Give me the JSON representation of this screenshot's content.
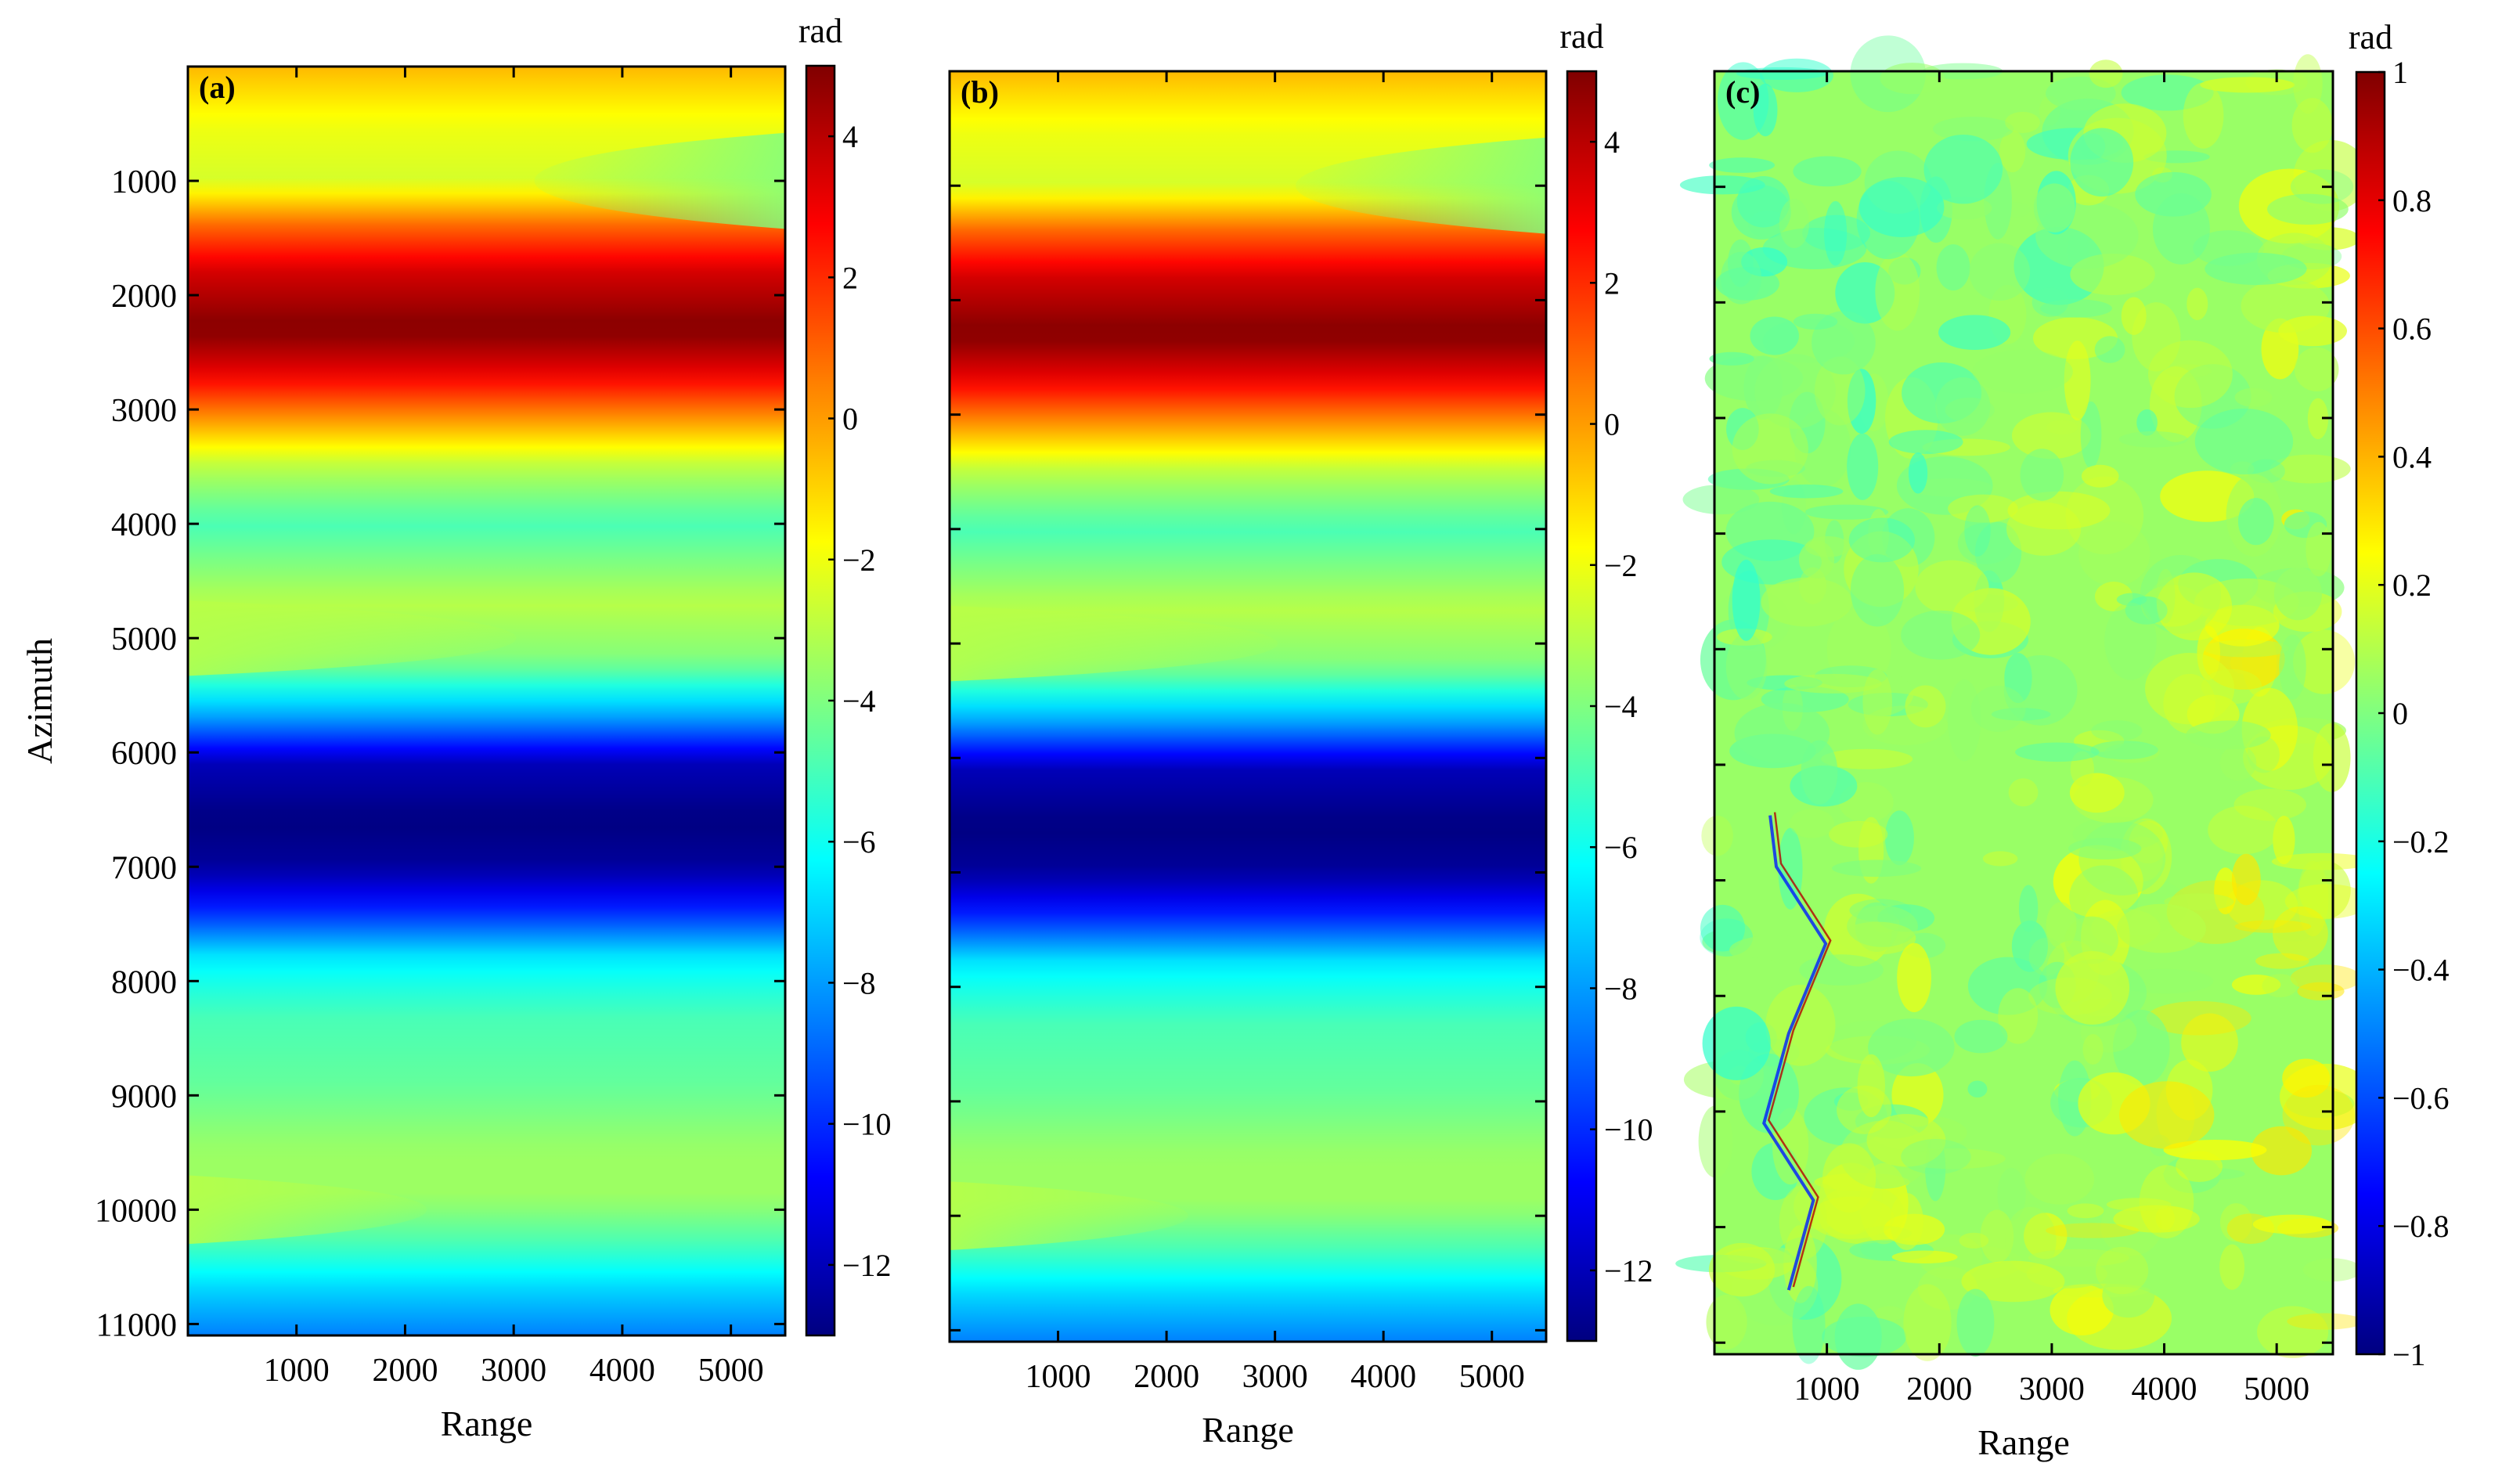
{
  "chart_data": [
    {
      "panel_label": "(a)",
      "type": "heatmap",
      "title": "",
      "xlabel": "Range",
      "ylabel": "Azimuth",
      "x_ticks": [
        1000,
        2000,
        3000,
        4000,
        5000
      ],
      "x_tick_labels": [
        "1000",
        "2000",
        "3000",
        "4000",
        "5000"
      ],
      "y_ticks": [
        1000,
        2000,
        3000,
        4000,
        5000,
        6000,
        7000,
        8000,
        9000,
        10000,
        11000
      ],
      "y_tick_labels": [
        "1000",
        "2000",
        "3000",
        "4000",
        "5000",
        "6000",
        "7000",
        "8000",
        "9000",
        "10000",
        "11000"
      ],
      "xlim": [
        0,
        5500
      ],
      "ylim": [
        0,
        11100
      ],
      "colorbar": {
        "label": "rad",
        "range": [
          -13,
          5
        ],
        "ticks": [
          4,
          2,
          0,
          -2,
          -4,
          -6,
          -8,
          -10,
          -12
        ],
        "tick_labels": [
          "4",
          "2",
          "0",
          "−2",
          "−4",
          "−6",
          "−8",
          "−10",
          "−12"
        ],
        "colormap": "jet"
      },
      "profile_azimuth": [
        0,
        500,
        1000,
        1400,
        1800,
        2300,
        2700,
        3100,
        3500,
        4000,
        4700,
        5200,
        5700,
        6100,
        6600,
        7000,
        7400,
        7800,
        8300,
        8900,
        9500,
        9900,
        10300,
        10700,
        11100
      ],
      "profile_values": [
        -0.5,
        -2,
        -2.5,
        1,
        3.5,
        5,
        3,
        0,
        -3,
        -5,
        -3,
        -4,
        -8,
        -12,
        -13,
        -12.5,
        -10,
        -6.5,
        -5,
        -4.5,
        -3.5,
        -3.5,
        -5,
        -7,
        -8.5
      ],
      "range_feature": "green lobes taper toward larger Range at Azimuth 1000, 5000, 10000"
    },
    {
      "panel_label": "(b)",
      "type": "heatmap",
      "title": "",
      "xlabel": "Range",
      "ylabel": "",
      "x_ticks": [
        1000,
        2000,
        3000,
        4000,
        5000
      ],
      "x_tick_labels": [
        "1000",
        "2000",
        "3000",
        "4000",
        "5000"
      ],
      "y_ticks": [
        1000,
        2000,
        3000,
        4000,
        5000,
        6000,
        7000,
        8000,
        9000,
        10000,
        11000
      ],
      "xlim": [
        0,
        5500
      ],
      "ylim": [
        0,
        11100
      ],
      "colorbar": {
        "label": "rad",
        "range": [
          -13,
          5
        ],
        "ticks": [
          4,
          2,
          0,
          -2,
          -4,
          -6,
          -8,
          -10,
          -12
        ],
        "tick_labels": [
          "4",
          "2",
          "0",
          "−2",
          "−4",
          "−6",
          "−8",
          "−10",
          "−12"
        ],
        "colormap": "jet"
      },
      "profile_azimuth": [
        0,
        500,
        1000,
        1400,
        1800,
        2300,
        2700,
        3100,
        3500,
        4000,
        4700,
        5200,
        5700,
        6100,
        6600,
        7000,
        7400,
        7800,
        8300,
        8900,
        9500,
        9900,
        10300,
        10700,
        11100
      ],
      "profile_values": [
        -0.5,
        -2,
        -2.5,
        1,
        3.5,
        5,
        3,
        0,
        -3,
        -5,
        -3,
        -4,
        -8,
        -12,
        -13,
        -12.5,
        -10,
        -6.5,
        -5,
        -4.5,
        -3.5,
        -3.5,
        -5,
        -7,
        -8.5
      ],
      "range_feature": "green lobes taper toward larger Range at Azimuth 1000, 5000, 10000"
    },
    {
      "panel_label": "(c)",
      "type": "heatmap",
      "title": "",
      "xlabel": "Range",
      "ylabel": "",
      "x_ticks": [
        1000,
        2000,
        3000,
        4000,
        5000
      ],
      "x_tick_labels": [
        "1000",
        "2000",
        "3000",
        "4000",
        "5000"
      ],
      "y_ticks": [
        1000,
        2000,
        3000,
        4000,
        5000,
        6000,
        7000,
        8000,
        9000,
        10000,
        11000
      ],
      "xlim": [
        0,
        5500
      ],
      "ylim": [
        0,
        11100
      ],
      "colorbar": {
        "label": "rad",
        "range": [
          -1,
          1
        ],
        "ticks": [
          1,
          0.8,
          0.6,
          0.4,
          0.2,
          0,
          -0.2,
          -0.4,
          -0.6,
          -0.8,
          -1
        ],
        "tick_labels": [
          "1",
          "0.8",
          "0.6",
          "0.4",
          "0.2",
          "0",
          "−0.2",
          "−0.4",
          "−0.6",
          "−0.8",
          "−1"
        ],
        "colormap": "jet"
      },
      "mean_value": 0.05,
      "value_spread": [
        -0.15,
        0.3
      ],
      "feature": "residual noise field; higher values (~0.2 to 0.4) toward right and bottom; thin red/blue streaks along a river channel on the left"
    }
  ]
}
